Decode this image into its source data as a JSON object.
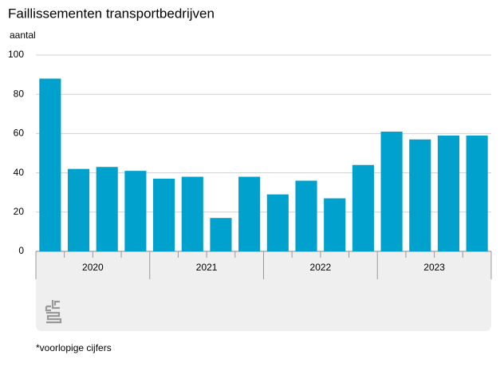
{
  "chart_data": {
    "type": "bar",
    "title": "Faillissementen transportbedrijven",
    "y_label": "aantal",
    "categories": [
      null,
      null,
      null,
      null,
      null,
      null,
      null,
      null,
      null,
      null,
      null,
      null,
      null,
      null,
      null,
      null
    ],
    "groups": [
      "2020",
      "2021",
      "2022",
      "2023"
    ],
    "values": [
      88,
      42,
      43,
      41,
      37,
      38,
      17,
      38,
      29,
      36,
      27,
      44,
      61,
      57,
      59,
      59
    ],
    "color": "#00a1cd",
    "ylim": [
      0,
      100
    ],
    "yticks": [
      0,
      20,
      40,
      60,
      80,
      100
    ],
    "grid": true,
    "footnote": "*voorlopige cijfers"
  }
}
